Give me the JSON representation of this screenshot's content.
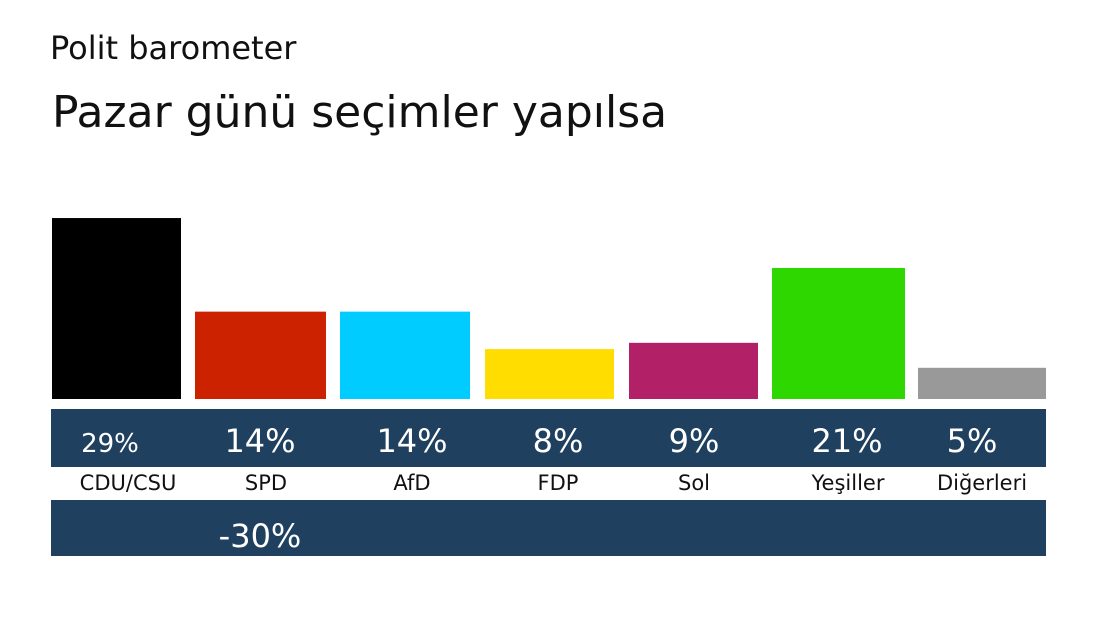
{
  "subtitle": "Polit barometer",
  "title": "Pazar günü seçimler yapılsa",
  "chart_data": {
    "type": "bar",
    "categories": [
      "CDU/CSU",
      "SPD",
      "AfD",
      "FDP",
      "Sol",
      "Yeşiller",
      "Diğerleri"
    ],
    "values": [
      29,
      14,
      14,
      8,
      9,
      21,
      5
    ],
    "value_labels": [
      "29%",
      "14%",
      "14%",
      "8%",
      "9%",
      "21%",
      "5%"
    ],
    "colors": [
      "#000000",
      "#cc2200",
      "#00ccff",
      "#ffdd00",
      "#b22068",
      "#2fd700",
      "#999999"
    ],
    "changes": [
      "",
      "-30%",
      "",
      "",
      "",
      "",
      ""
    ]
  }
}
